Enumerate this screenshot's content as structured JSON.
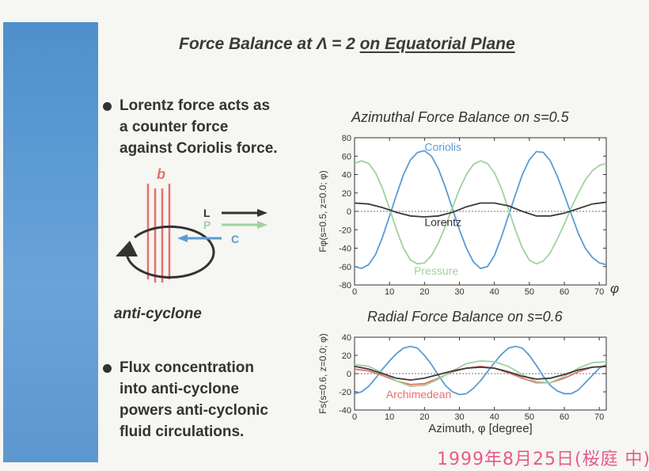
{
  "slide": {
    "title_prefix": "Force Balance at Λ = 2 ",
    "title_underlined": "on Equatorial Plane",
    "bullets": [
      {
        "lines": [
          "Lorentz force acts as",
          "a counter force",
          "against Coriolis force."
        ]
      },
      {
        "lines": [
          "Flux concentration",
          "into anti-cyclone",
          "powers anti-cyclonic",
          "fluid circulations."
        ]
      }
    ],
    "diagram": {
      "field_label": "b",
      "arrow_labels": {
        "L": "L",
        "P": "P",
        "C": "C"
      },
      "caption": "anti-cyclone",
      "colors": {
        "field": "#e8706a",
        "L": "#333333",
        "P": "#9fd39c",
        "C": "#5b9bd5"
      }
    },
    "stamp": "1999年8月25日(桜庭 中)"
  },
  "chart_data": [
    {
      "type": "line",
      "title": "Azimuthal Force Balance on s=0.5",
      "ylabel": "Fφ(s=0.5, z=0.0; φ)",
      "xlabel": "φ",
      "xlim": [
        0,
        72
      ],
      "ylim": [
        -80,
        80
      ],
      "xticks": [
        0,
        10,
        20,
        30,
        40,
        50,
        60,
        70
      ],
      "yticks": [
        80,
        60,
        40,
        20,
        0,
        -20,
        -40,
        -60,
        -80
      ],
      "grid": false,
      "series": [
        {
          "name": "Coriolis",
          "color": "#5b9bd5",
          "x": [
            0,
            2,
            4,
            6,
            8,
            10,
            12,
            14,
            16,
            18,
            20,
            22,
            24,
            26,
            28,
            30,
            32,
            34,
            36,
            38,
            40,
            42,
            44,
            46,
            48,
            50,
            52,
            54,
            56,
            58,
            60,
            62,
            64,
            66,
            68,
            70,
            72
          ],
          "y": [
            -60,
            -62,
            -58,
            -47,
            -28,
            -5,
            18,
            40,
            56,
            64,
            66,
            60,
            46,
            26,
            3,
            -20,
            -40,
            -55,
            -62,
            -60,
            -48,
            -28,
            -5,
            18,
            40,
            56,
            65,
            64,
            55,
            38,
            18,
            -3,
            -24,
            -40,
            -50,
            -56,
            -58
          ]
        },
        {
          "name": "Pressure",
          "color": "#9fd39c",
          "x": [
            0,
            2,
            4,
            6,
            8,
            10,
            12,
            14,
            16,
            18,
            20,
            22,
            24,
            26,
            28,
            30,
            32,
            34,
            36,
            38,
            40,
            42,
            44,
            46,
            48,
            50,
            52,
            54,
            56,
            58,
            60,
            62,
            64,
            66,
            68,
            70,
            72
          ],
          "y": [
            52,
            55,
            52,
            42,
            25,
            3,
            -20,
            -40,
            -53,
            -57,
            -56,
            -48,
            -34,
            -16,
            4,
            24,
            40,
            51,
            55,
            52,
            42,
            25,
            3,
            -20,
            -40,
            -53,
            -57,
            -54,
            -45,
            -30,
            -14,
            4,
            20,
            34,
            44,
            50,
            52
          ]
        },
        {
          "name": "Lorentz",
          "color": "#3a3a3a",
          "x": [
            0,
            4,
            8,
            12,
            16,
            20,
            24,
            28,
            32,
            36,
            40,
            44,
            48,
            52,
            56,
            60,
            64,
            68,
            72
          ],
          "y": [
            9,
            8,
            4,
            -1,
            -5,
            -6,
            -5,
            -1,
            5,
            9,
            9,
            6,
            0,
            -5,
            -5,
            -2,
            3,
            8,
            10
          ]
        }
      ]
    },
    {
      "type": "line",
      "title": "Radial Force Balance on s=0.6",
      "ylabel": "Fs(s=0.6, z=0.0; φ)",
      "xlabel": "Azimuth, φ [degree]",
      "xlim": [
        0,
        72
      ],
      "ylim": [
        -40,
        40
      ],
      "xticks": [
        0,
        10,
        20,
        30,
        40,
        50,
        60,
        70
      ],
      "yticks": [
        40,
        20,
        0,
        -20,
        -40
      ],
      "grid": false,
      "series": [
        {
          "color": "#5b9bd5",
          "x": [
            0,
            2,
            4,
            6,
            8,
            10,
            12,
            14,
            16,
            18,
            20,
            22,
            24,
            26,
            28,
            30,
            32,
            34,
            36,
            38,
            40,
            42,
            44,
            46,
            48,
            50,
            52,
            54,
            56,
            58,
            60,
            62,
            64,
            66,
            68,
            70,
            72
          ],
          "y": [
            -22,
            -20,
            -14,
            -5,
            5,
            14,
            22,
            28,
            30,
            28,
            20,
            10,
            -2,
            -13,
            -20,
            -23,
            -22,
            -16,
            -8,
            2,
            12,
            21,
            28,
            30,
            28,
            20,
            9,
            -3,
            -13,
            -19,
            -22,
            -22,
            -18,
            -10,
            -2,
            6,
            10
          ]
        },
        {
          "name": "Archimedean",
          "color": "#e8706a",
          "x": [
            0,
            4,
            8,
            12,
            16,
            20,
            24,
            28,
            32,
            36,
            40,
            44,
            48,
            52,
            56,
            60,
            64,
            68,
            72
          ],
          "y": [
            5,
            3,
            -2,
            -8,
            -12,
            -11,
            -5,
            2,
            6,
            8,
            6,
            1,
            -5,
            -10,
            -10,
            -5,
            2,
            7,
            8
          ]
        },
        {
          "color": "#9fd39c",
          "x": [
            0,
            4,
            8,
            12,
            16,
            20,
            24,
            28,
            32,
            36,
            40,
            44,
            48,
            52,
            56,
            60,
            64,
            68,
            72
          ],
          "y": [
            10,
            8,
            1,
            -8,
            -14,
            -13,
            -6,
            3,
            11,
            14,
            13,
            8,
            -1,
            -9,
            -10,
            -3,
            6,
            12,
            13
          ]
        },
        {
          "color": "#3a3a3a",
          "x": [
            0,
            4,
            8,
            12,
            16,
            20,
            24,
            28,
            32,
            36,
            40,
            44,
            48,
            52,
            56,
            60,
            64,
            68,
            72
          ],
          "y": [
            8,
            5,
            0,
            -5,
            -7,
            -5,
            -1,
            3,
            6,
            7,
            6,
            2,
            -3,
            -6,
            -5,
            -1,
            4,
            7,
            8
          ]
        }
      ]
    }
  ]
}
